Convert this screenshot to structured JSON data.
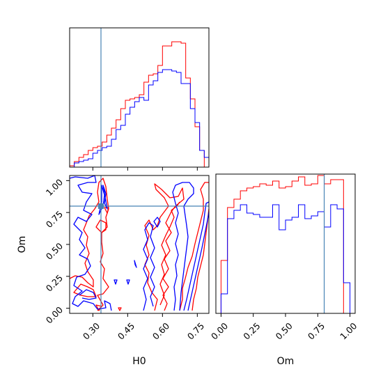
{
  "chart_data": {
    "type": "corner",
    "parameters": [
      "H0",
      "Om"
    ],
    "truth": {
      "H0": 0.335,
      "Om": 0.8
    },
    "truth_color": "#4682b4",
    "grid": false,
    "series": [
      {
        "color": "#ff0000"
      },
      {
        "color": "#0000ff"
      }
    ],
    "panels": [
      {
        "id": "hist-H0",
        "type": "step-histogram",
        "xlim": [
          0.2,
          0.8
        ],
        "ylim": [
          0,
          1.0
        ],
        "x_ticks": [
          0.3,
          0.45,
          0.6,
          0.75
        ],
        "bin_edges": [
          0.2,
          0.22,
          0.24,
          0.26,
          0.28,
          0.3,
          0.32,
          0.34,
          0.36,
          0.38,
          0.4,
          0.42,
          0.44,
          0.46,
          0.48,
          0.5,
          0.52,
          0.54,
          0.56,
          0.58,
          0.6,
          0.62,
          0.64,
          0.66,
          0.68,
          0.7,
          0.72,
          0.74,
          0.76,
          0.78,
          0.8
        ],
        "counts": [
          [
            0.01,
            0.04,
            0.07,
            0.09,
            0.12,
            0.14,
            0.15,
            0.18,
            0.23,
            0.28,
            0.34,
            0.42,
            0.48,
            0.49,
            0.5,
            0.52,
            0.61,
            0.66,
            0.67,
            0.73,
            0.87,
            0.87,
            0.9,
            0.9,
            0.89,
            0.64,
            0.49,
            0.29,
            0.12,
            0.0
          ],
          [
            0.0,
            0.03,
            0.04,
            0.05,
            0.06,
            0.1,
            0.12,
            0.14,
            0.15,
            0.2,
            0.27,
            0.3,
            0.38,
            0.43,
            0.47,
            0.5,
            0.48,
            0.59,
            0.62,
            0.68,
            0.7,
            0.7,
            0.69,
            0.68,
            0.6,
            0.6,
            0.42,
            0.32,
            0.12,
            0.07
          ]
        ]
      },
      {
        "id": "hist-Om",
        "type": "step-histogram",
        "xlim": [
          -0.04,
          1.04
        ],
        "ylim": [
          0,
          1.0
        ],
        "x_ticks": [
          0.0,
          0.25,
          0.5,
          0.75,
          1.0
        ],
        "x_tick_labels": [
          "0.00",
          "0.25",
          "0.50",
          "0.75",
          "1.00"
        ],
        "bin_edges": [
          0.0,
          0.05,
          0.1,
          0.15,
          0.2,
          0.25,
          0.3,
          0.35,
          0.4,
          0.45,
          0.5,
          0.55,
          0.6,
          0.65,
          0.7,
          0.75,
          0.8,
          0.85,
          0.9,
          0.95,
          1.0
        ],
        "counts": [
          [
            0.38,
            0.76,
            0.82,
            0.88,
            0.9,
            0.91,
            0.93,
            0.92,
            0.95,
            0.9,
            0.91,
            0.95,
            0.98,
            0.92,
            0.93,
            0.99,
            0.93,
            0.96,
            0.96,
            0.0
          ],
          [
            0.14,
            0.68,
            0.74,
            0.78,
            0.72,
            0.71,
            0.69,
            0.69,
            0.78,
            0.6,
            0.67,
            0.69,
            0.78,
            0.68,
            0.7,
            0.73,
            0.62,
            0.78,
            0.75,
            0.22
          ]
        ]
      },
      {
        "id": "contour-H0-Om",
        "type": "contour",
        "xlabel": "H0",
        "ylabel": "Om",
        "xlim": [
          0.2,
          0.8
        ],
        "ylim": [
          -0.04,
          1.04
        ],
        "x_ticks": [
          0.3,
          0.45,
          0.6,
          0.75
        ],
        "x_tick_labels": [
          "0.30",
          "0.45",
          "0.60",
          "0.75"
        ],
        "y_ticks": [
          0.0,
          0.25,
          0.5,
          0.75,
          1.0
        ],
        "y_tick_labels": [
          "0.00",
          "0.25",
          "0.50",
          "0.75",
          "1.00"
        ]
      }
    ]
  }
}
